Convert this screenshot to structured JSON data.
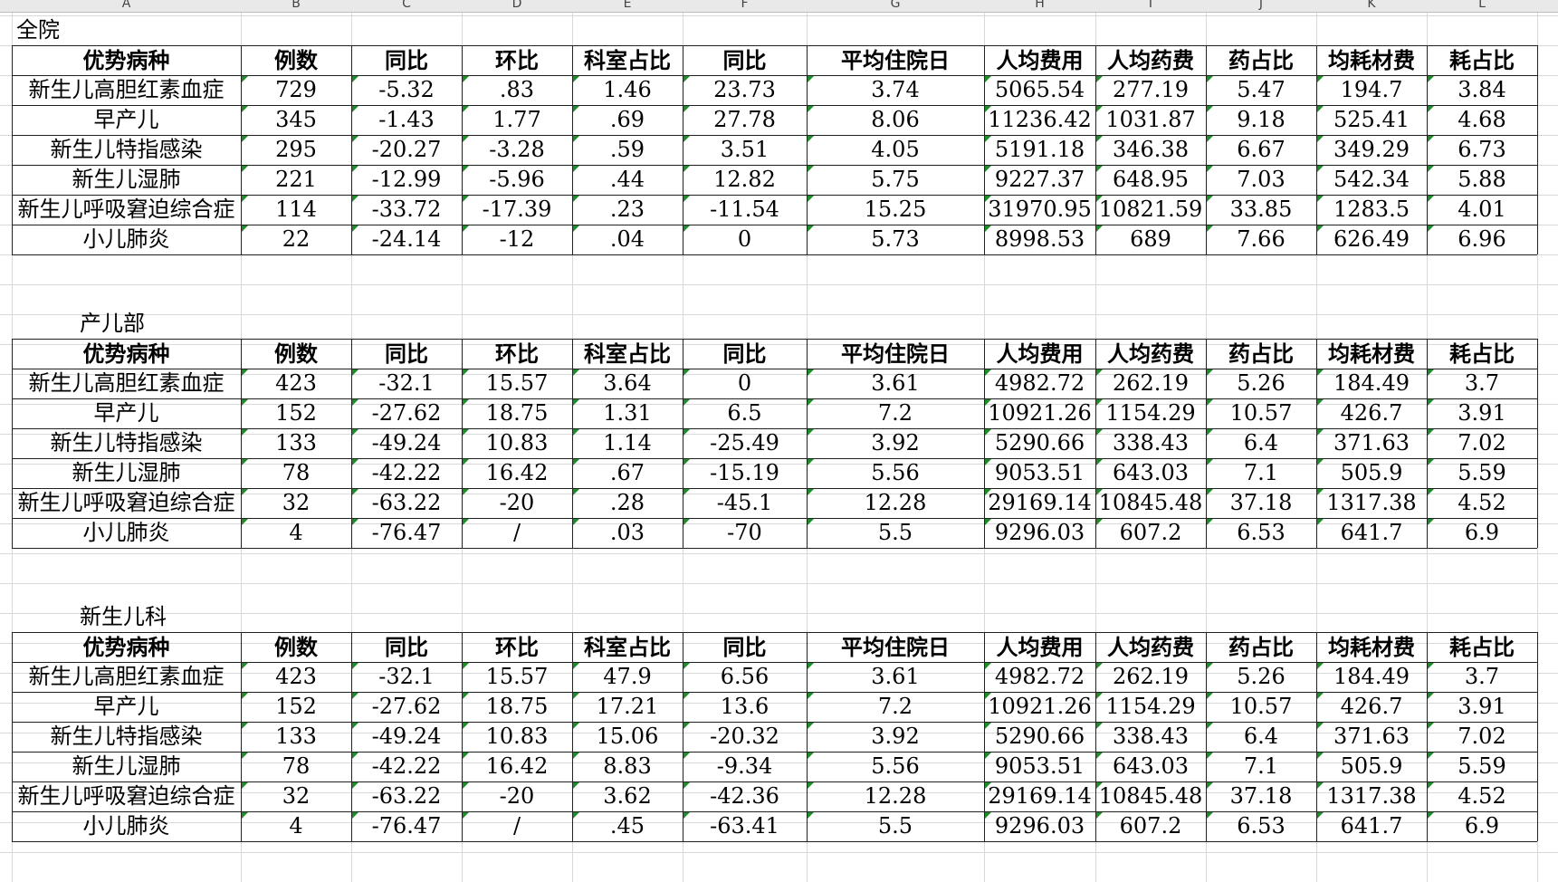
{
  "columns": [
    "A",
    "B",
    "C",
    "D",
    "E",
    "F",
    "G",
    "H",
    "I",
    "J",
    "K",
    "L"
  ],
  "headers": [
    "优势病种",
    "例数",
    "同比",
    "环比",
    "科室占比",
    "同比",
    "平均住院日",
    "人均费用",
    "人均药费",
    "药占比",
    "均耗材费",
    "耗占比"
  ],
  "sections": [
    {
      "title": "全院",
      "rows": [
        [
          "新生儿高胆红素血症",
          "729",
          "-5.32",
          ".83",
          "1.46",
          "23.73",
          "3.74",
          "5065.54",
          "277.19",
          "5.47",
          "194.7",
          "3.84"
        ],
        [
          "早产儿",
          "345",
          "-1.43",
          "1.77",
          ".69",
          "27.78",
          "8.06",
          "11236.42",
          "1031.87",
          "9.18",
          "525.41",
          "4.68"
        ],
        [
          "新生儿特指感染",
          "295",
          "-20.27",
          "-3.28",
          ".59",
          "3.51",
          "4.05",
          "5191.18",
          "346.38",
          "6.67",
          "349.29",
          "6.73"
        ],
        [
          "新生儿湿肺",
          "221",
          "-12.99",
          "-5.96",
          ".44",
          "12.82",
          "5.75",
          "9227.37",
          "648.95",
          "7.03",
          "542.34",
          "5.88"
        ],
        [
          "新生儿呼吸窘迫综合症",
          "114",
          "-33.72",
          "-17.39",
          ".23",
          "-11.54",
          "15.25",
          "31970.95",
          "10821.59",
          "33.85",
          "1283.5",
          "4.01"
        ],
        [
          "小儿肺炎",
          "22",
          "-24.14",
          "-12",
          ".04",
          "0",
          "5.73",
          "8998.53",
          "689",
          "7.66",
          "626.49",
          "6.96"
        ]
      ]
    },
    {
      "title": "产儿部",
      "rows": [
        [
          "新生儿高胆红素血症",
          "423",
          "-32.1",
          "15.57",
          "3.64",
          "0",
          "3.61",
          "4982.72",
          "262.19",
          "5.26",
          "184.49",
          "3.7"
        ],
        [
          "早产儿",
          "152",
          "-27.62",
          "18.75",
          "1.31",
          "6.5",
          "7.2",
          "10921.26",
          "1154.29",
          "10.57",
          "426.7",
          "3.91"
        ],
        [
          "新生儿特指感染",
          "133",
          "-49.24",
          "10.83",
          "1.14",
          "-25.49",
          "3.92",
          "5290.66",
          "338.43",
          "6.4",
          "371.63",
          "7.02"
        ],
        [
          "新生儿湿肺",
          "78",
          "-42.22",
          "16.42",
          ".67",
          "-15.19",
          "5.56",
          "9053.51",
          "643.03",
          "7.1",
          "505.9",
          "5.59"
        ],
        [
          "新生儿呼吸窘迫综合症",
          "32",
          "-63.22",
          "-20",
          ".28",
          "-45.1",
          "12.28",
          "29169.14",
          "10845.48",
          "37.18",
          "1317.38",
          "4.52"
        ],
        [
          "小儿肺炎",
          "4",
          "-76.47",
          "/",
          ".03",
          "-70",
          "5.5",
          "9296.03",
          "607.2",
          "6.53",
          "641.7",
          "6.9"
        ]
      ]
    },
    {
      "title": "新生儿科",
      "rows": [
        [
          "新生儿高胆红素血症",
          "423",
          "-32.1",
          "15.57",
          "47.9",
          "6.56",
          "3.61",
          "4982.72",
          "262.19",
          "5.26",
          "184.49",
          "3.7"
        ],
        [
          "早产儿",
          "152",
          "-27.62",
          "18.75",
          "17.21",
          "13.6",
          "7.2",
          "10921.26",
          "1154.29",
          "10.57",
          "426.7",
          "3.91"
        ],
        [
          "新生儿特指感染",
          "133",
          "-49.24",
          "10.83",
          "15.06",
          "-20.32",
          "3.92",
          "5290.66",
          "338.43",
          "6.4",
          "371.63",
          "7.02"
        ],
        [
          "新生儿湿肺",
          "78",
          "-42.22",
          "16.42",
          "8.83",
          "-9.34",
          "5.56",
          "9053.51",
          "643.03",
          "7.1",
          "505.9",
          "5.59"
        ],
        [
          "新生儿呼吸窘迫综合症",
          "32",
          "-63.22",
          "-20",
          "3.62",
          "-42.36",
          "12.28",
          "29169.14",
          "10845.48",
          "37.18",
          "1317.38",
          "4.52"
        ],
        [
          "小儿肺炎",
          "4",
          "-76.47",
          "/",
          ".45",
          "-63.41",
          "5.5",
          "9296.03",
          "607.2",
          "6.53",
          "641.7",
          "6.9"
        ]
      ]
    }
  ]
}
